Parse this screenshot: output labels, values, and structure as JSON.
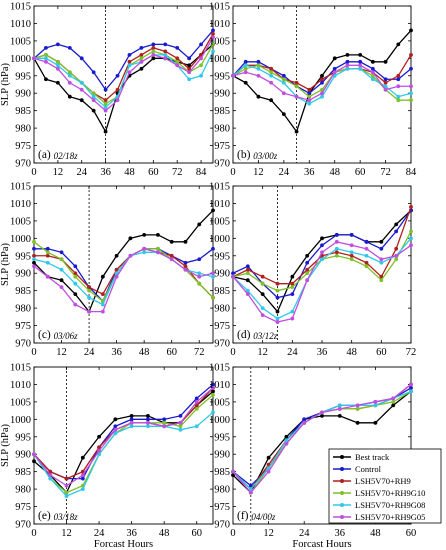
{
  "figure": {
    "ylabel": "SLP (hPa)",
    "xlabel": "Forcast Hours"
  },
  "legend": {
    "entries": [
      {
        "name": "Best track",
        "color": "#000000"
      },
      {
        "name": "Control",
        "color": "#1a1ad0"
      },
      {
        "name": "LSH5V70+RH9",
        "color": "#b0201c"
      },
      {
        "name": "LSH5V70+RH9G10",
        "color": "#7ec12a"
      },
      {
        "name": "LSH5V70+RH9G08",
        "color": "#31c8e8"
      },
      {
        "name": "LSH5V70+RH9G05",
        "color": "#c04ee0"
      }
    ]
  },
  "chart_data": [
    {
      "type": "line",
      "panel_label": "(a)",
      "init_label": "02/18z",
      "xlim": [
        0,
        90
      ],
      "ylim": [
        970,
        1015
      ],
      "xticks": [
        0,
        12,
        24,
        36,
        48,
        60,
        72,
        84
      ],
      "yticks": [
        970,
        975,
        980,
        985,
        990,
        995,
        1000,
        1005,
        1010,
        1015
      ],
      "landfall_x": 36,
      "x": [
        0,
        6,
        12,
        18,
        24,
        30,
        36,
        42,
        48,
        54,
        60,
        66,
        72,
        78,
        84,
        90
      ],
      "series": [
        {
          "name": "Best track",
          "values": [
            1000,
            994,
            993,
            989,
            988,
            985,
            979,
            990,
            995,
            997,
            1000,
            1000,
            999,
            998,
            1001,
            1004
          ]
        },
        {
          "name": "Control",
          "values": [
            1000,
            1003,
            1004,
            1003,
            1000,
            996,
            991,
            995,
            1001,
            1003,
            1004,
            1004,
            1003,
            1000,
            1004,
            1008
          ]
        },
        {
          "name": "LSH5V70+RH9",
          "values": [
            1000,
            1001,
            999,
            996,
            993,
            990,
            988,
            991,
            999,
            1001,
            1003,
            1002,
            1000,
            997,
            1001,
            1007
          ]
        },
        {
          "name": "LSH5V70+RH9G10",
          "values": [
            1000,
            1001,
            999,
            996,
            993,
            990,
            987,
            989,
            998,
            1000,
            1002,
            1001,
            999,
            996,
            998,
            1004
          ]
        },
        {
          "name": "LSH5V70+RH9G08",
          "values": [
            1000,
            1000,
            998,
            995,
            993,
            989,
            986,
            989,
            998,
            999,
            1001,
            1001,
            998,
            994,
            995,
            1002
          ]
        },
        {
          "name": "LSH5V70+RH9G05",
          "values": [
            1000,
            999,
            997,
            993,
            991,
            988,
            985,
            988,
            996,
            999,
            1001,
            1000,
            998,
            996,
            1000,
            1006
          ]
        }
      ]
    },
    {
      "type": "line",
      "panel_label": "(b)",
      "init_label": "03/00z",
      "xlim": [
        0,
        84
      ],
      "ylim": [
        970,
        1015
      ],
      "xticks": [
        0,
        12,
        24,
        36,
        48,
        60,
        72,
        84
      ],
      "yticks": [
        970,
        975,
        980,
        985,
        990,
        995,
        1000,
        1005,
        1010,
        1015
      ],
      "landfall_x": 30,
      "x": [
        0,
        6,
        12,
        18,
        24,
        30,
        36,
        42,
        48,
        54,
        60,
        66,
        72,
        78,
        84
      ],
      "series": [
        {
          "name": "Best track",
          "values": [
            995,
            993,
            989,
            988,
            984,
            979,
            990,
            995,
            1000,
            1001,
            1001,
            999,
            999,
            1004,
            1008
          ]
        },
        {
          "name": "Control",
          "values": [
            995,
            999,
            999,
            997,
            995,
            992,
            990,
            993,
            997,
            999,
            999,
            997,
            994,
            994,
            997
          ]
        },
        {
          "name": "LSH5V70+RH9",
          "values": [
            995,
            998,
            998,
            997,
            994,
            993,
            991,
            994,
            996,
            997,
            997,
            996,
            993,
            995,
            1001
          ]
        },
        {
          "name": "LSH5V70+RH9G10",
          "values": [
            995,
            997,
            998,
            996,
            994,
            992,
            989,
            991,
            996,
            997,
            997,
            995,
            991,
            988,
            988
          ]
        },
        {
          "name": "LSH5V70+RH9G08",
          "values": [
            995,
            998,
            997,
            995,
            993,
            989,
            987,
            989,
            995,
            997,
            997,
            994,
            992,
            989,
            990
          ]
        },
        {
          "name": "LSH5V70+RH9G05",
          "values": [
            995,
            996,
            995,
            993,
            990,
            989,
            988,
            990,
            996,
            998,
            998,
            996,
            991,
            992,
            992
          ]
        }
      ]
    },
    {
      "type": "line",
      "panel_label": "(c)",
      "init_label": "03/06z",
      "xlim": [
        0,
        78
      ],
      "ylim": [
        970,
        1015
      ],
      "xticks": [
        0,
        12,
        24,
        36,
        48,
        60,
        72
      ],
      "yticks": [
        970,
        975,
        980,
        985,
        990,
        995,
        1000,
        1005,
        1010,
        1015
      ],
      "landfall_x": 24,
      "x": [
        0,
        6,
        12,
        18,
        24,
        30,
        36,
        42,
        48,
        54,
        60,
        66,
        72,
        78
      ],
      "series": [
        {
          "name": "Best track",
          "values": [
            993,
            989,
            988,
            984,
            979,
            989,
            995,
            1000,
            1001,
            1001,
            999,
            999,
            1004,
            1008
          ]
        },
        {
          "name": "Control",
          "values": [
            997,
            997,
            996,
            992,
            986,
            982,
            991,
            995,
            997,
            997,
            995,
            993,
            994,
            997
          ]
        },
        {
          "name": "LSH5V70+RH9",
          "values": [
            995,
            995,
            994,
            990,
            986,
            984,
            991,
            995,
            997,
            996,
            995,
            992,
            987,
            983
          ]
        },
        {
          "name": "LSH5V70+RH9G10",
          "values": [
            999,
            996,
            994,
            989,
            985,
            982,
            990,
            995,
            997,
            997,
            994,
            991,
            987,
            983
          ]
        },
        {
          "name": "LSH5V70+RH9G08",
          "values": [
            994,
            993,
            991,
            987,
            983,
            981,
            990,
            995,
            996,
            996,
            994,
            991,
            990,
            989
          ]
        },
        {
          "name": "LSH5V70+RH9G05",
          "values": [
            992,
            989,
            986,
            981,
            979,
            979,
            989,
            995,
            997,
            996,
            994,
            991,
            989,
            990
          ]
        }
      ]
    },
    {
      "type": "line",
      "panel_label": "(d)",
      "init_label": "03/12z",
      "xlim": [
        0,
        72
      ],
      "ylim": [
        970,
        1015
      ],
      "xticks": [
        0,
        12,
        24,
        36,
        48,
        60,
        72
      ],
      "yticks": [
        970,
        975,
        980,
        985,
        990,
        995,
        1000,
        1005,
        1010,
        1015
      ],
      "landfall_x": 18,
      "x": [
        0,
        6,
        12,
        18,
        24,
        30,
        36,
        42,
        48,
        54,
        60,
        66,
        72
      ],
      "series": [
        {
          "name": "Best track",
          "values": [
            989,
            988,
            984,
            979,
            989,
            995,
            1000,
            1001,
            1001,
            999,
            999,
            1004,
            1008
          ]
        },
        {
          "name": "Control",
          "values": [
            990,
            992,
            987,
            983,
            984,
            993,
            998,
            1001,
            1001,
            999,
            997,
            1002,
            1008
          ]
        },
        {
          "name": "LSH5V70+RH9",
          "values": [
            989,
            991,
            989,
            987,
            987,
            991,
            995,
            996,
            995,
            993,
            989,
            997,
            1009
          ]
        },
        {
          "name": "LSH5V70+RH9G10",
          "values": [
            989,
            990,
            987,
            985,
            986,
            990,
            994,
            995,
            994,
            992,
            988,
            994,
            1002
          ]
        },
        {
          "name": "LSH5V70+RH9G08",
          "values": [
            989,
            985,
            980,
            977,
            979,
            988,
            994,
            997,
            996,
            995,
            993,
            995,
            1000
          ]
        },
        {
          "name": "LSH5V70+RH9G05",
          "values": [
            989,
            984,
            978,
            976,
            977,
            988,
            996,
            999,
            998,
            997,
            994,
            995,
            998
          ]
        }
      ]
    },
    {
      "type": "line",
      "panel_label": "(e)",
      "init_label": "03/18z",
      "xlim": [
        0,
        66
      ],
      "ylim": [
        970,
        1015
      ],
      "xticks": [
        0,
        12,
        24,
        36,
        48,
        60
      ],
      "yticks": [
        970,
        975,
        980,
        985,
        990,
        995,
        1000,
        1005,
        1010,
        1015
      ],
      "landfall_x": 12,
      "x": [
        0,
        6,
        12,
        18,
        24,
        30,
        36,
        42,
        48,
        54,
        60,
        66
      ],
      "series": [
        {
          "name": "Best track",
          "values": [
            988,
            984,
            979,
            989,
            995,
            1000,
            1001,
            1001,
            999,
            999,
            1004,
            1008
          ]
        },
        {
          "name": "Control",
          "values": [
            990,
            985,
            983,
            983,
            992,
            998,
            1000,
            1000,
            1000,
            1001,
            1006,
            1010
          ]
        },
        {
          "name": "LSH5V70+RH9",
          "values": [
            990,
            985,
            983,
            985,
            992,
            997,
            999,
            999,
            998,
            999,
            1004,
            1009
          ]
        },
        {
          "name": "LSH5V70+RH9G10",
          "values": [
            990,
            983,
            979,
            981,
            990,
            996,
            999,
            999,
            999,
            998,
            1003,
            1007
          ]
        },
        {
          "name": "LSH5V70+RH9G08",
          "values": [
            990,
            983,
            978,
            980,
            990,
            996,
            998,
            998,
            998,
            997,
            998,
            1002
          ]
        },
        {
          "name": "LSH5V70+RH9G05",
          "values": [
            990,
            984,
            981,
            984,
            991,
            997,
            999,
            999,
            998,
            999,
            1005,
            1009
          ]
        }
      ]
    },
    {
      "type": "line",
      "panel_label": "(f)",
      "init_label": "04/00z",
      "xlim": [
        0,
        60
      ],
      "ylim": [
        970,
        1015
      ],
      "xticks": [
        0,
        12,
        24,
        36,
        48,
        60
      ],
      "yticks": [
        970,
        975,
        980,
        985,
        990,
        995,
        1000,
        1005,
        1010,
        1015
      ],
      "landfall_x": 6,
      "x": [
        0,
        6,
        12,
        18,
        24,
        30,
        36,
        42,
        48,
        54,
        60
      ],
      "series": [
        {
          "name": "Best track",
          "values": [
            984,
            979,
            989,
            995,
            1000,
            1001,
            1001,
            999,
            999,
            1004,
            1008
          ]
        },
        {
          "name": "Control",
          "values": [
            985,
            981,
            986,
            994,
            1000,
            1002,
            1004,
            1004,
            1005,
            1006,
            1009
          ]
        },
        {
          "name": "LSH5V70+RH9",
          "values": [
            985,
            980,
            987,
            994,
            999,
            1002,
            1003,
            1003,
            1004,
            1006,
            1010
          ]
        },
        {
          "name": "LSH5V70+RH9G10",
          "values": [
            985,
            979,
            986,
            993,
            999,
            1002,
            1003,
            1003,
            1004,
            1005,
            1008
          ]
        },
        {
          "name": "LSH5V70+RH9G08",
          "values": [
            985,
            980,
            986,
            994,
            999,
            1002,
            1004,
            1004,
            1004,
            1006,
            1008
          ]
        },
        {
          "name": "LSH5V70+RH9G05",
          "values": [
            985,
            979,
            985,
            993,
            999,
            1002,
            1003,
            1004,
            1005,
            1006,
            1010
          ]
        }
      ]
    }
  ]
}
